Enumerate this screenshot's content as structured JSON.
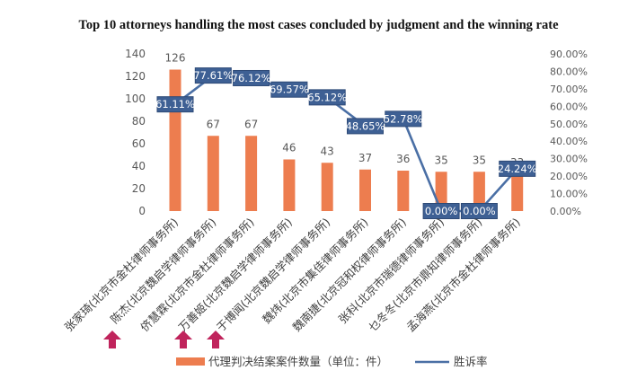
{
  "chart_data": {
    "type": "bar",
    "title": "Top 10 attorneys handling the most cases concluded by judgment and the winning rate",
    "categories": [
      "张家琦(北京市金杜律师事务所)",
      "陈杰(北京魏启学律师事务所)",
      "侪慧霖(北京市金杜律师事务所)",
      "万善姬(北京魏启学律师事务所)",
      "于博闻(北京魏启学律师事务所)",
      "魏炜(北京市集佳律师事务所)",
      "魏南捷(北京冠和权律师事务所)",
      "张科(北京市瑞德律师事务所)",
      "乜冬冬(北京市鼎知律师事务所)",
      "孟海燕(北京市金杜律师事务所)"
    ],
    "series": [
      {
        "name": "代理判决结案案件数量（单位：件）",
        "type": "bar",
        "axis": "left",
        "color": "#ED7D4F",
        "values": [
          126,
          67,
          67,
          46,
          43,
          37,
          36,
          35,
          35,
          33
        ],
        "labels": [
          "126",
          "67",
          "67",
          "46",
          "43",
          "37",
          "36",
          "35",
          "35",
          "33"
        ]
      },
      {
        "name": "胜诉率",
        "type": "line",
        "axis": "right",
        "color": "#4A6FA5",
        "values": [
          61.11,
          77.61,
          76.12,
          69.57,
          65.12,
          48.65,
          52.78,
          0.0,
          0.0,
          24.24
        ],
        "labels": [
          "61.11%",
          "77.61%",
          "76.12%",
          "69.57%",
          "65.12%",
          "48.65%",
          "52.78%",
          "0.00%",
          "0.00%",
          "24.24%"
        ]
      }
    ],
    "y_left": {
      "ylim": [
        0,
        140
      ],
      "ticks": [
        "0",
        "20",
        "40",
        "60",
        "80",
        "100",
        "120",
        "140"
      ]
    },
    "y_right": {
      "ylim": [
        0,
        90
      ],
      "ticks": [
        "0.00%",
        "10.00%",
        "20.00%",
        "30.00%",
        "40.00%",
        "50.00%",
        "60.00%",
        "70.00%",
        "80.00%",
        "90.00%"
      ]
    },
    "legend": {
      "placement": "bottom"
    },
    "grid": false,
    "markers": {
      "type": "arrow-up",
      "color": "#C0245C",
      "category_indices": [
        1,
        2,
        3
      ]
    }
  }
}
